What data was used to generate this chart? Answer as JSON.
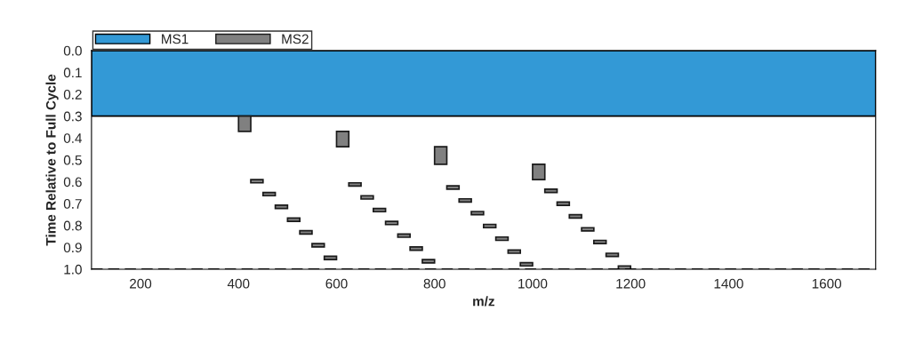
{
  "chart_data": {
    "type": "bar",
    "xlabel": "m/z",
    "ylabel": "Time Relative to Full Cycle",
    "xlim": [
      100,
      1700
    ],
    "xticks": [
      200,
      400,
      600,
      800,
      1000,
      1200,
      1400,
      1600
    ],
    "ylim": [
      1.0,
      0.0
    ],
    "yticks": [
      {
        "value": 0,
        "label": "0.0"
      },
      {
        "value": 0.1,
        "label": "0.1"
      },
      {
        "value": 0.2,
        "label": "0.2"
      },
      {
        "value": 0.3,
        "label": "0.3"
      },
      {
        "value": 0.4,
        "label": "0.4"
      },
      {
        "value": 0.5,
        "label": "0.5"
      },
      {
        "value": 0.6,
        "label": "0.6"
      },
      {
        "value": 0.7,
        "label": "0.7"
      },
      {
        "value": 0.8,
        "label": "0.8"
      },
      {
        "value": 0.9,
        "label": "0.9"
      },
      {
        "value": 1.0,
        "label": "1.0"
      }
    ],
    "bands": [
      {
        "axis": "y",
        "from": 0,
        "to": 0.3,
        "label": "MS1",
        "color": "#3399d6"
      }
    ],
    "ref_lines": [
      {
        "axis": "y",
        "value": 1.0,
        "line_style": "dashed",
        "color": "#000000"
      }
    ],
    "series": [
      {
        "name": "MS2",
        "color": "#808080",
        "x": [
          412.5,
          437.5,
          462.5,
          487.5,
          512.5,
          537.5,
          562.5,
          587.5,
          612.5,
          637.5,
          662.5,
          687.5,
          712.5,
          737.5,
          762.5,
          787.5,
          812.5,
          837.5,
          862.5,
          887.5,
          912.5,
          937.5,
          962.5,
          987.5,
          1012.5,
          1037.5,
          1062.5,
          1087.5,
          1112.5,
          1137.5,
          1162.5,
          1187.5
        ],
        "base": [
          0.3,
          0.59,
          0.649,
          0.707,
          0.766,
          0.824,
          0.883,
          0.941,
          0.37,
          0.605,
          0.664,
          0.722,
          0.781,
          0.839,
          0.898,
          0.956,
          0.44,
          0.619,
          0.678,
          0.736,
          0.795,
          0.853,
          0.912,
          0.97,
          0.52,
          0.634,
          0.693,
          0.751,
          0.81,
          0.868,
          0.927,
          0.985
        ],
        "values": [
          0.07,
          0.015,
          0.015,
          0.015,
          0.015,
          0.015,
          0.015,
          0.015,
          0.07,
          0.015,
          0.015,
          0.015,
          0.015,
          0.015,
          0.015,
          0.015,
          0.08,
          0.015,
          0.015,
          0.015,
          0.015,
          0.015,
          0.015,
          0.015,
          0.07,
          0.015,
          0.015,
          0.015,
          0.015,
          0.015,
          0.015,
          0.015
        ]
      }
    ],
    "grid": false,
    "legend": "top left"
  }
}
